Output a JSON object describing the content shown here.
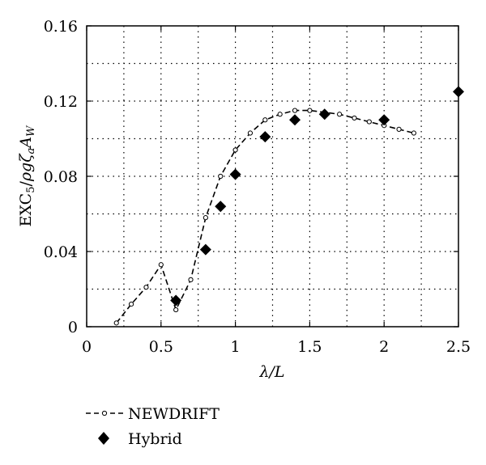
{
  "chart_data": {
    "type": "line",
    "title": "",
    "xlabel": "λ/L",
    "ylabel": "EXC5/ρgζaAW",
    "xlim": [
      0,
      2.5
    ],
    "ylim": [
      0,
      0.16
    ],
    "xticks": [
      0,
      0.5,
      1,
      1.5,
      2,
      2.5
    ],
    "xtick_labels": [
      "0",
      "0.5",
      "1",
      "1.5",
      "2",
      "2.5"
    ],
    "yticks": [
      0,
      0.04,
      0.08,
      0.12,
      0.16
    ],
    "ytick_labels": [
      "0",
      "0.04",
      "0.08",
      "0.12",
      "0.16"
    ],
    "grid": true,
    "legend_position": "below",
    "series": [
      {
        "name": "NEWDRIFT",
        "style": "dashed line with open circle markers",
        "x": [
          0.2,
          0.3,
          0.4,
          0.5,
          0.6,
          0.7,
          0.8,
          0.9,
          1.0,
          1.1,
          1.2,
          1.3,
          1.4,
          1.5,
          1.6,
          1.7,
          1.8,
          1.9,
          2.0,
          2.1,
          2.2
        ],
        "y": [
          0.002,
          0.012,
          0.021,
          0.033,
          0.009,
          0.025,
          0.058,
          0.08,
          0.094,
          0.103,
          0.11,
          0.113,
          0.115,
          0.115,
          0.114,
          0.113,
          0.111,
          0.109,
          0.107,
          0.105,
          0.103
        ]
      },
      {
        "name": "Hybrid",
        "style": "filled diamond markers",
        "x": [
          0.6,
          0.8,
          0.9,
          1.0,
          1.2,
          1.4,
          1.6,
          2.0,
          2.5
        ],
        "y": [
          0.014,
          0.041,
          0.064,
          0.081,
          0.101,
          0.11,
          0.113,
          0.11,
          0.125
        ]
      }
    ],
    "colors": {
      "line": "#000000",
      "grid": "#000000",
      "background": "#ffffff"
    }
  }
}
